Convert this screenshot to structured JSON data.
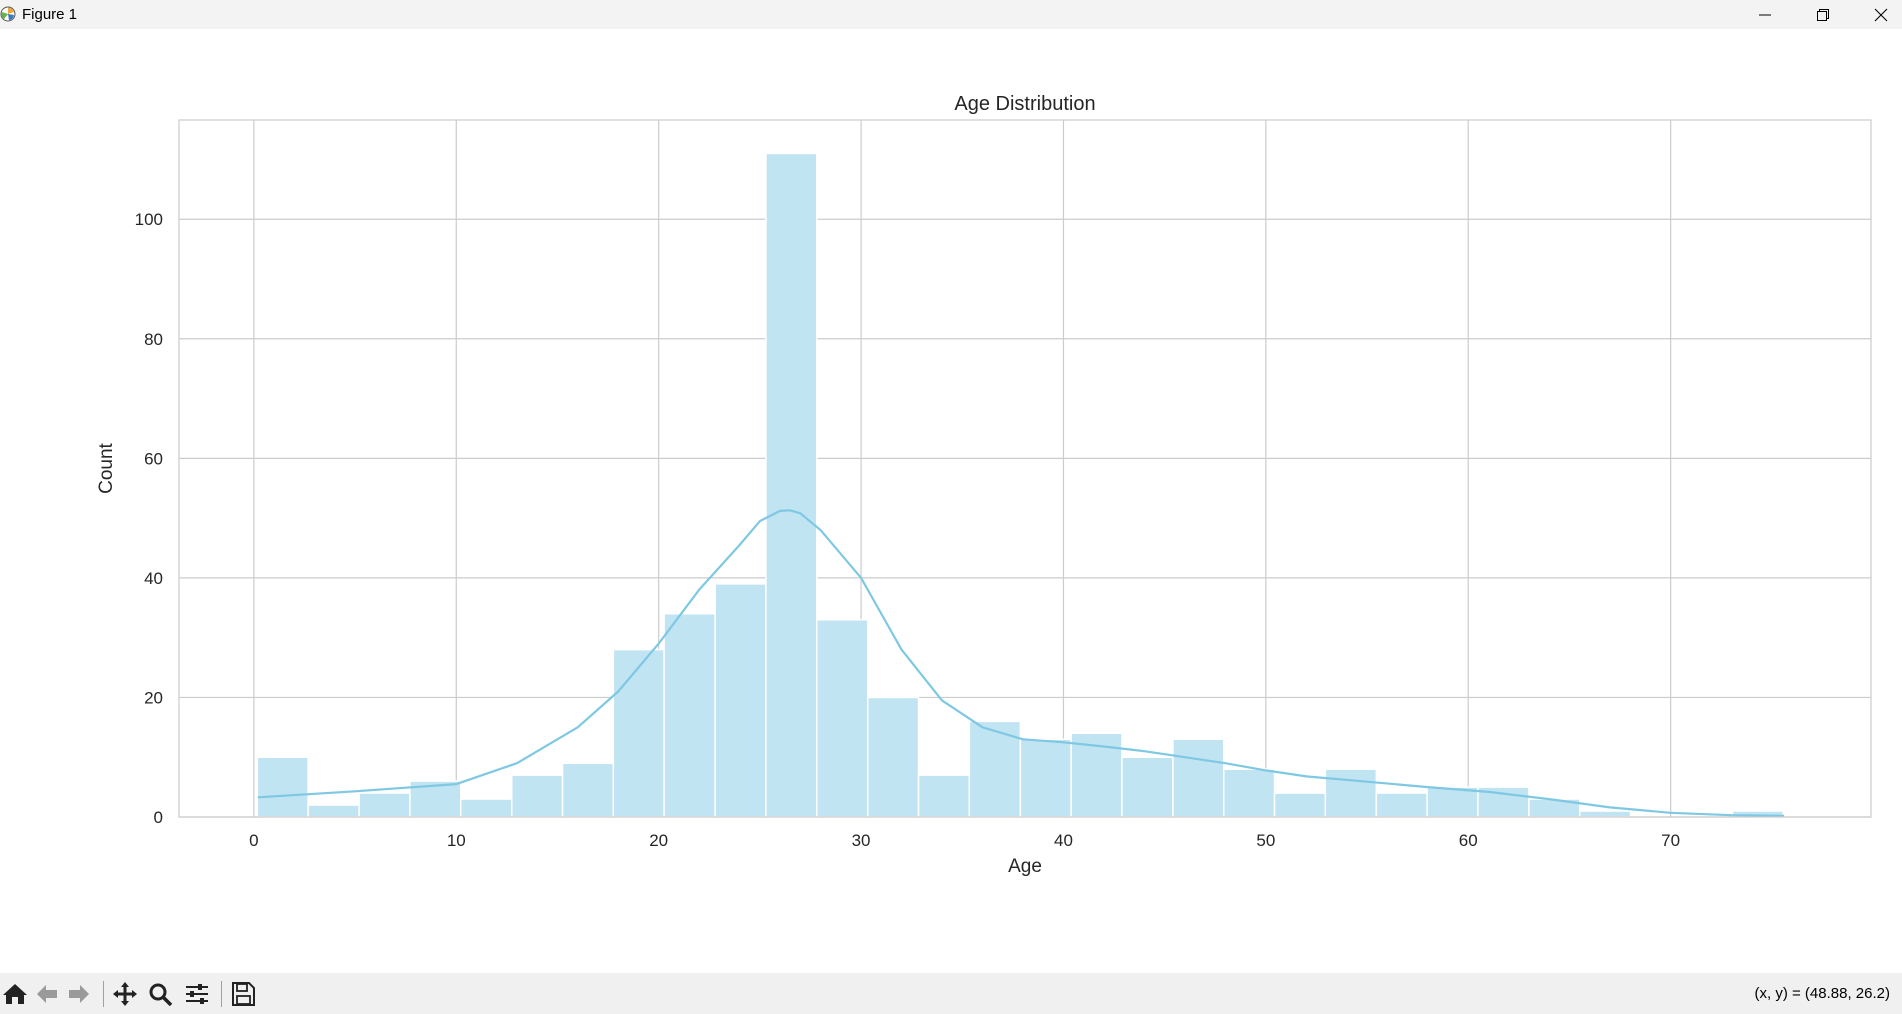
{
  "window": {
    "title": "Figure 1"
  },
  "toolbar": {
    "coords": "(x, y) = (48.88, 26.2)"
  },
  "colors": {
    "bar_fill": "#c1e4f2",
    "kde_line": "#7ec8e3",
    "grid": "#cccccc"
  },
  "chart_data": {
    "type": "bar",
    "title": "Age Distribution",
    "xlabel": "Age",
    "ylabel": "Count",
    "xlim": [
      -3.7,
      79.9
    ],
    "ylim": [
      0,
      116.6
    ],
    "xticks": [
      0,
      10,
      20,
      30,
      40,
      50,
      60,
      70
    ],
    "yticks": [
      0,
      20,
      40,
      60,
      80,
      100
    ],
    "grid": true,
    "bins": {
      "edges": [
        0.17,
        2.68,
        5.2,
        7.71,
        10.22,
        12.74,
        15.25,
        17.76,
        20.27,
        22.79,
        25.3,
        27.81,
        30.33,
        32.84,
        35.35,
        37.87,
        40.38,
        42.89,
        45.41,
        47.92,
        50.43,
        52.94,
        55.46,
        57.97,
        60.48,
        63.0,
        65.51,
        68.02,
        70.54,
        73.05,
        75.56
      ],
      "counts": [
        10,
        2,
        4,
        6,
        3,
        7,
        9,
        28,
        34,
        39,
        111,
        33,
        20,
        7,
        16,
        13,
        14,
        10,
        13,
        8,
        4,
        8,
        4,
        5,
        5,
        3,
        1,
        0,
        0,
        1
      ]
    },
    "kde": {
      "x": [
        0.2,
        5,
        10,
        13,
        16,
        18,
        20,
        22,
        24,
        25,
        26,
        26.5,
        27,
        28,
        30,
        32,
        34,
        36,
        38,
        40,
        42,
        44,
        46,
        48,
        50,
        52,
        55,
        58,
        61,
        64,
        67,
        70,
        73,
        75.6
      ],
      "y": [
        3.3,
        4.3,
        5.5,
        9.0,
        15.0,
        21.0,
        29.0,
        38.0,
        45.5,
        49.5,
        51.2,
        51.3,
        50.8,
        48.0,
        40.0,
        28.0,
        19.5,
        15.0,
        13.0,
        12.5,
        11.8,
        11.0,
        10.0,
        9.0,
        7.8,
        6.8,
        5.9,
        5.0,
        4.2,
        3.0,
        1.6,
        0.7,
        0.3,
        0.2
      ]
    }
  }
}
